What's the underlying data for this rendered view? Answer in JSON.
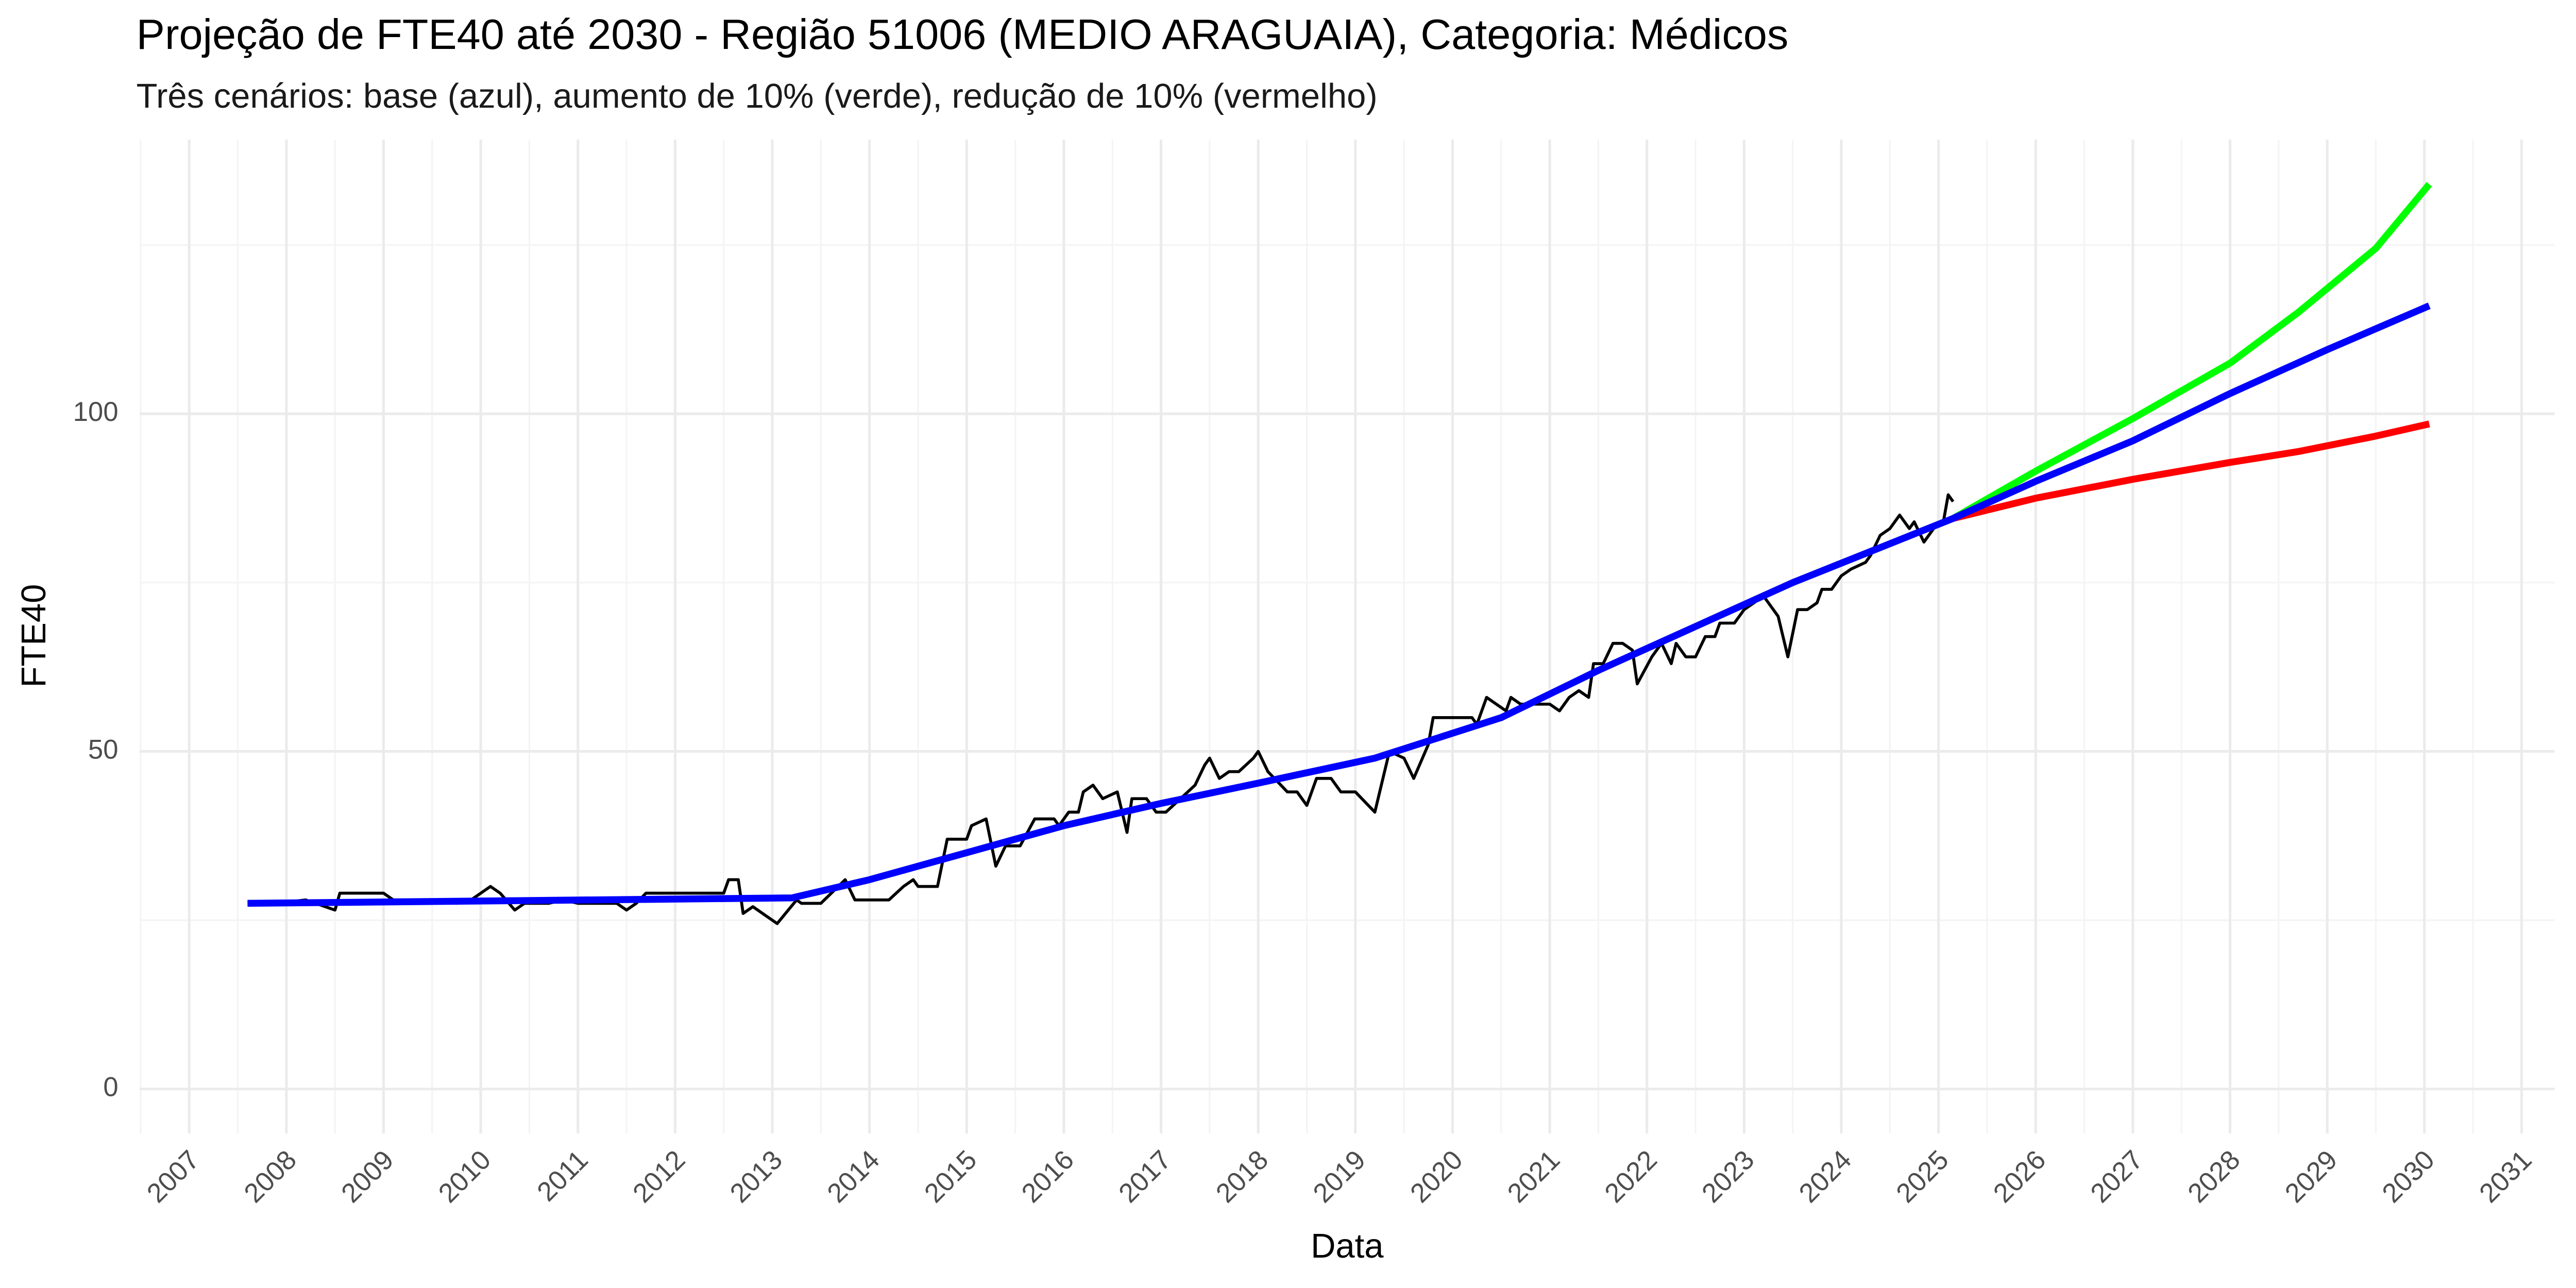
{
  "chart_data": {
    "type": "line",
    "title": "Projeção de FTE40 até 2030 - Região 51006 (MEDIO ARAGUAIA), Categoria: Médicos",
    "subtitle": "Três cenários: base (azul), aumento de 10% (verde), redução de 10% (vermelho)",
    "xlabel": "Data",
    "ylabel": "FTE40",
    "xlim": [
      2006.49,
      2031.34
    ],
    "ylim": [
      -6.6,
      140.6
    ],
    "xticks": [
      2007,
      2008,
      2009,
      2010,
      2011,
      2012,
      2013,
      2014,
      2015,
      2016,
      2017,
      2018,
      2019,
      2020,
      2021,
      2022,
      2023,
      2024,
      2025,
      2026,
      2027,
      2028,
      2029,
      2030,
      2031
    ],
    "yticks": [
      0,
      50,
      100
    ],
    "grid": true,
    "series": [
      {
        "color": "#000000",
        "x": [
          2007.6,
          2007.9,
          2008.2,
          2008.4,
          2008.5,
          2008.55,
          2009.0,
          2009.1,
          2009.5,
          2009.75,
          2009.9,
          2010.0,
          2010.1,
          2010.2,
          2010.35,
          2010.45,
          2010.7,
          2010.85,
          2011.0,
          2011.4,
          2011.5,
          2011.6,
          2011.7,
          2012.5,
          2012.55,
          2012.65,
          2012.7,
          2012.8,
          2013.05,
          2013.25,
          2013.3,
          2013.5,
          2013.75,
          2013.85,
          2014.2,
          2014.35,
          2014.45,
          2014.5,
          2014.7,
          2014.8,
          2015.0,
          2015.05,
          2015.2,
          2015.3,
          2015.4,
          2015.55,
          2015.7,
          2015.9,
          2015.95,
          2016.05,
          2016.15,
          2016.2,
          2016.3,
          2016.4,
          2016.55,
          2016.65,
          2016.7,
          2016.85,
          2016.95,
          2017.05,
          2017.2,
          2017.35,
          2017.45,
          2017.5,
          2017.6,
          2017.7,
          2017.8,
          2017.95,
          2018.0,
          2018.1,
          2018.3,
          2018.4,
          2018.5,
          2018.6,
          2018.75,
          2018.85,
          2019.0,
          2019.1,
          2019.2,
          2019.35,
          2019.5,
          2019.6,
          2019.75,
          2019.8,
          2020.2,
          2020.25,
          2020.35,
          2020.45,
          2020.55,
          2020.6,
          2020.7,
          2021.0,
          2021.1,
          2021.2,
          2021.3,
          2021.4,
          2021.45,
          2021.55,
          2021.65,
          2021.75,
          2021.85,
          2021.9,
          2022.05,
          2022.15,
          2022.25,
          2022.3,
          2022.4,
          2022.5,
          2022.6,
          2022.7,
          2022.75,
          2022.9,
          2023.0,
          2023.1,
          2023.2,
          2023.3,
          2023.35,
          2023.45,
          2023.55,
          2023.65,
          2023.75,
          2023.8,
          2023.9,
          2024.0,
          2024.1,
          2024.25,
          2024.3,
          2024.4,
          2024.5,
          2024.6,
          2024.7,
          2024.75,
          2024.85,
          2024.95,
          2025.05,
          2025.1,
          2025.15
        ],
        "values": [
          27.5,
          27.5,
          28,
          27,
          26.5,
          29,
          29,
          28,
          28,
          27.5,
          28,
          29,
          30,
          29,
          26.5,
          27.5,
          27.5,
          28,
          27.5,
          27.5,
          26.5,
          27.5,
          29,
          29,
          31,
          31,
          26,
          27,
          24.5,
          28,
          27.5,
          27.5,
          31,
          28,
          28,
          30,
          31,
          30,
          30,
          37,
          37,
          39,
          40,
          33,
          36,
          36,
          40,
          40,
          39,
          41,
          41,
          44,
          45,
          43,
          44,
          38,
          43,
          43,
          41,
          41,
          43,
          45,
          48,
          49,
          46,
          47,
          47,
          49,
          50,
          47,
          44,
          44,
          42,
          46,
          46,
          44,
          44,
          42.5,
          41,
          50,
          49,
          46,
          51,
          55,
          55,
          54,
          58,
          57,
          56,
          58,
          57,
          57,
          56,
          58,
          59,
          58,
          63,
          63,
          66,
          66,
          65,
          60,
          64,
          66,
          63,
          66,
          64,
          64,
          67,
          67,
          69,
          69,
          71,
          72,
          73,
          71,
          70,
          64,
          71,
          71,
          72,
          74,
          74,
          76,
          77,
          78,
          79,
          82,
          83,
          85,
          83,
          84,
          81,
          83,
          84,
          88,
          87
        ]
      },
      {
        "color": "#00ff00",
        "x": [
          2025.15,
          2026.0,
          2027.0,
          2028.0,
          2028.7,
          2029.5,
          2030.05
        ],
        "values": [
          84.5,
          91.5,
          99.3,
          107.5,
          115,
          124.5,
          134
        ]
      },
      {
        "color": "#ff0000",
        "x": [
          2025.15,
          2026.0,
          2027.0,
          2028.0,
          2028.7,
          2029.5,
          2030.05
        ],
        "values": [
          84.5,
          87.5,
          90.3,
          92.8,
          94.4,
          96.7,
          98.5
        ]
      },
      {
        "color": "#0000ff",
        "x": [
          2007.6,
          2013.2,
          2014.0,
          2015.0,
          2016.0,
          2017.0,
          2018.0,
          2019.2,
          2020.5,
          2021.5,
          2022.5,
          2023.5,
          2025.15,
          2026.0,
          2027.0,
          2028.0,
          2029.0,
          2030.05
        ],
        "values": [
          27.5,
          28.3,
          31,
          35,
          39,
          42.3,
          45.3,
          49,
          55,
          62,
          68.5,
          75,
          84.5,
          90,
          96,
          103,
          109.5,
          116
        ]
      }
    ]
  }
}
